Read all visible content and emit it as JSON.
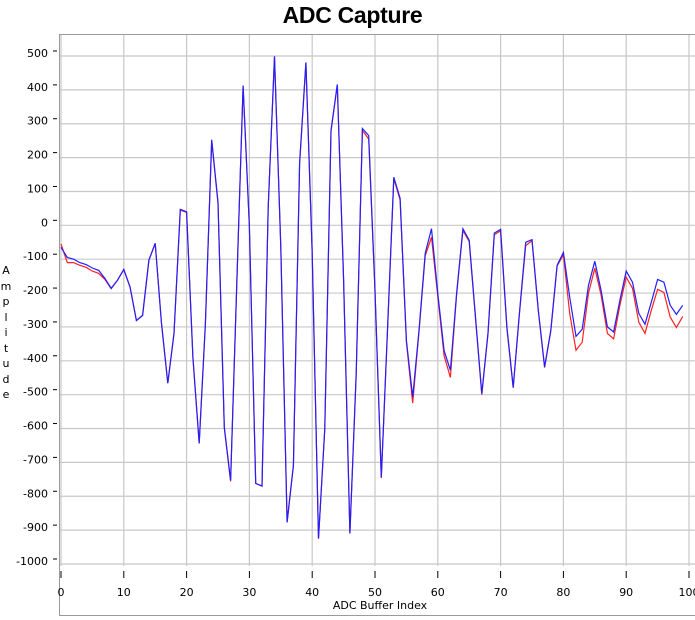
{
  "title": "ADC Capture",
  "chart_data": {
    "type": "line",
    "title": "ADC Capture",
    "xlabel": "ADC Buffer Index",
    "ylabel": "Amplitude",
    "xlim": [
      0,
      100
    ],
    "ylim": [
      -1000,
      500
    ],
    "x_ticks": [
      0,
      10,
      20,
      30,
      40,
      50,
      60,
      70,
      80,
      90,
      100
    ],
    "y_ticks": [
      500,
      400,
      300,
      200,
      100,
      0,
      -100,
      -200,
      -300,
      -400,
      -500,
      -600,
      -700,
      -800,
      -900,
      -1000
    ],
    "grid": true,
    "legend": null,
    "x": [
      0,
      1,
      2,
      3,
      4,
      5,
      6,
      7,
      8,
      9,
      10,
      11,
      12,
      13,
      14,
      15,
      16,
      17,
      18,
      19,
      20,
      21,
      22,
      23,
      24,
      25,
      26,
      27,
      28,
      29,
      30,
      31,
      32,
      33,
      34,
      35,
      36,
      37,
      38,
      39,
      40,
      41,
      42,
      43,
      44,
      45,
      46,
      47,
      48,
      49,
      50,
      51,
      52,
      53,
      54,
      55,
      56,
      57,
      58,
      59,
      60,
      61,
      62,
      63,
      64,
      65,
      66,
      67,
      68,
      69,
      70,
      71,
      72,
      73,
      74,
      75,
      76,
      77,
      78,
      79,
      80,
      81,
      82,
      83,
      84,
      85,
      86,
      87,
      88,
      89,
      90,
      91,
      92,
      93,
      94,
      95,
      96,
      97,
      98,
      99
    ],
    "series": [
      {
        "name": "red",
        "color": "#ff2020",
        "values": [
          -55,
          -110,
          -110,
          -118,
          -124,
          -135,
          -142,
          -160,
          -187,
          -162,
          -130,
          -183,
          -281,
          -266,
          -103,
          -53,
          -290,
          -466,
          -319,
          45,
          38,
          -390,
          -644,
          -290,
          250,
          65,
          -598,
          -756,
          -171,
          410,
          -5,
          -762,
          -770,
          53,
          497,
          -65,
          -877,
          -709,
          183,
          479,
          -83,
          -925,
          -600,
          278,
          414,
          -162,
          -910,
          -440,
          280,
          255,
          -195,
          -746,
          -305,
          138,
          75,
          -345,
          -525,
          -315,
          -90,
          -35,
          -210,
          -385,
          -449,
          -205,
          -15,
          -48,
          -275,
          -500,
          -320,
          -28,
          -16,
          -305,
          -480,
          -262,
          -60,
          -45,
          -252,
          -420,
          -312,
          -120,
          -87,
          -260,
          -369,
          -345,
          -200,
          -127,
          -206,
          -319,
          -335,
          -236,
          -153,
          -186,
          -286,
          -319,
          -251,
          -189,
          -198,
          -271,
          -302,
          -269
        ]
      },
      {
        "name": "blue",
        "color": "#2020ff",
        "values": [
          -65,
          -95,
          -100,
          -110,
          -116,
          -126,
          -133,
          -157,
          -186,
          -162,
          -130,
          -183,
          -281,
          -266,
          -103,
          -53,
          -290,
          -466,
          -319,
          47,
          40,
          -390,
          -644,
          -290,
          253,
          68,
          -596,
          -753,
          -171,
          413,
          -5,
          -762,
          -770,
          53,
          499,
          -65,
          -877,
          -709,
          183,
          481,
          -83,
          -925,
          -600,
          280,
          416,
          -162,
          -910,
          -437,
          286,
          265,
          -192,
          -744,
          -300,
          142,
          80,
          -340,
          -507,
          -310,
          -83,
          -10,
          -201,
          -370,
          -428,
          -201,
          -10,
          -44,
          -271,
          -497,
          -318,
          -23,
          -12,
          -300,
          -478,
          -260,
          -50,
          -42,
          -250,
          -418,
          -310,
          -118,
          -80,
          -212,
          -328,
          -307,
          -177,
          -106,
          -192,
          -300,
          -315,
          -221,
          -135,
          -168,
          -260,
          -292,
          -227,
          -160,
          -168,
          -236,
          -263,
          -236
        ]
      }
    ]
  },
  "colors": {
    "grid": "#c8c8c8",
    "frame": "#9a9a9a"
  }
}
